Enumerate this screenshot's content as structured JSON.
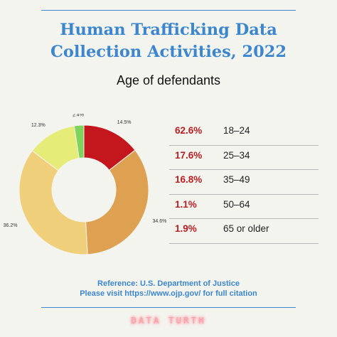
{
  "header": {
    "title_line1": "Human Trafficking Data",
    "title_line2": "Collection Activities, 2022",
    "subtitle": "Age of defendants"
  },
  "chart_data": {
    "type": "pie",
    "subtype": "donut",
    "title": "Age of defendants",
    "start_angle_deg": 0,
    "slices": [
      {
        "label": "18–24",
        "value": 14.5,
        "data_label": "14.5%",
        "color": "#c4171d"
      },
      {
        "label": "25–34",
        "value": 34.6,
        "data_label": "34.6%",
        "color": "#dea152"
      },
      {
        "label": "35–49",
        "value": 36.2,
        "data_label": "36.2%",
        "color": "#f0cf7b"
      },
      {
        "label": "50–64",
        "value": 12.3,
        "data_label": "12.3%",
        "color": "#e5ec78"
      },
      {
        "label": "65 or older",
        "value": 2.4,
        "data_label": "2.4%",
        "color": "#7dd35c"
      }
    ]
  },
  "stats": [
    {
      "pct": "62.6%",
      "age": "18–24"
    },
    {
      "pct": "17.6%",
      "age": "25–34"
    },
    {
      "pct": "16.8%",
      "age": "35–49"
    },
    {
      "pct": "1.1%",
      "age": "50–64"
    },
    {
      "pct": "1.9%",
      "age": "65 or older"
    }
  ],
  "footer": {
    "reference_line1": "Reference: U.S. Department of Justice",
    "reference_line2": "Please visit https://www.ojp.gov/ for full citation",
    "brand": "DATA TURTH"
  },
  "colors": {
    "accent_blue": "#3b86cf",
    "accent_red": "#b81d22",
    "background": "#f4f4ef"
  }
}
